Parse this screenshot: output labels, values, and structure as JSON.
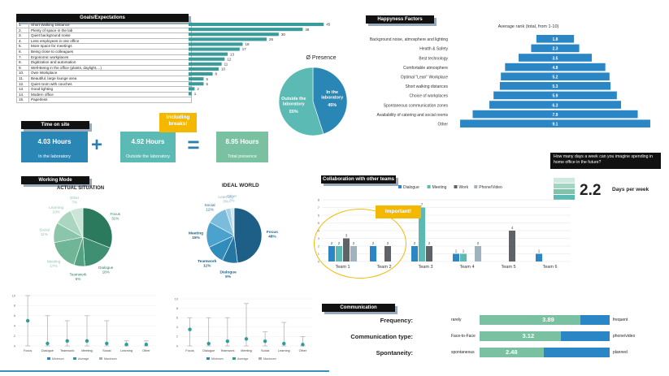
{
  "goals": {
    "title": "Goals/Expectations",
    "rows": [
      {
        "n": "1.",
        "label": "Short Walking Distance",
        "value": 45
      },
      {
        "n": "2.",
        "label": "Plenty of space in the lab",
        "value": 38
      },
      {
        "n": "3.",
        "label": "Quiet background noise",
        "value": 30
      },
      {
        "n": "4.",
        "label": "Less employees in one office",
        "value": 26
      },
      {
        "n": "5.",
        "label": "More space for meetings",
        "value": 18
      },
      {
        "n": "6.",
        "label": "Being close to colleagues",
        "value": 17
      },
      {
        "n": "7.",
        "label": "Ergonomic workplaces",
        "value": 13
      },
      {
        "n": "8.",
        "label": "Digitization and automation",
        "value": 12
      },
      {
        "n": "9.",
        "label": "Well-Being in the office (plants, daylight,...)",
        "value": 11
      },
      {
        "n": "10.",
        "label": "Own Workplace",
        "value": 10
      },
      {
        "n": "11.",
        "label": "Beautiful, large lounge area",
        "value": 8
      },
      {
        "n": "12.",
        "label": "Quiet room with couches",
        "value": 5
      },
      {
        "n": "13.",
        "label": "Good lighting",
        "value": 5
      },
      {
        "n": "14.",
        "label": "Modern office",
        "value": 2
      },
      {
        "n": "15.",
        "label": "Paperless",
        "value": 1
      }
    ]
  },
  "presence": {
    "title": "Ø Presence",
    "slices": [
      {
        "label": "In the laboratory",
        "value": "45%",
        "pct": 45,
        "color": "#2a86b4"
      },
      {
        "label": "Outside the laboratory",
        "value": "55%",
        "pct": 55,
        "color": "#5bbab3"
      }
    ]
  },
  "time": {
    "title": "Time on site",
    "lab": {
      "value": "4.03 Hours",
      "label": "In the laboratory"
    },
    "outside": {
      "value": "4.92 Hours",
      "label": "Outside the laboratory"
    },
    "total": {
      "value": "8.95 Hours",
      "label": "Total presence"
    },
    "callout": "Including breaks!",
    "plus": "+",
    "equals": "="
  },
  "happiness": {
    "title": "Happyness Factors",
    "subtitle": "Average rank (total, from 1-10)",
    "rows": [
      {
        "label": "Background noise, atmosphere and lighting",
        "value": 1.8
      },
      {
        "label": "Health & Safety",
        "value": 2.3
      },
      {
        "label": "Best technology",
        "value": 3.5
      },
      {
        "label": "Comfortable atmosphere",
        "value": 4.8
      },
      {
        "label": "Optimal \"Lean\" Workplace",
        "value": 5.2
      },
      {
        "label": "Short walking distances",
        "value": 5.3
      },
      {
        "label": "Choice of workplaces",
        "value": 5.9
      },
      {
        "label": "Spontaneous communication zones",
        "value": 6.3
      },
      {
        "label": "Availability of catering and social rooms",
        "value": 7.9
      },
      {
        "label": "Other",
        "value": 9.1
      }
    ]
  },
  "home_office": {
    "question": "How many days a week can you imagine spending in home office in the future?",
    "value": "2.2",
    "unit": "Days per week"
  },
  "working_mode": {
    "title": "Working Mode",
    "actual": {
      "title": "ACTUAL SITUATION",
      "slices": [
        {
          "label": "Focus",
          "value": "31%",
          "pct": 31,
          "color": "#2c7a5e"
        },
        {
          "label": "Dialogue",
          "value": "18%",
          "pct": 18,
          "color": "#3f8f72"
        },
        {
          "label": "Teamwork",
          "value": "6%",
          "pct": 6,
          "color": "#55a283"
        },
        {
          "label": "Meeting",
          "value": "17%",
          "pct": 17,
          "color": "#6fb596"
        },
        {
          "label": "Social",
          "value": "11%",
          "pct": 11,
          "color": "#8cc6aa"
        },
        {
          "label": "Learning",
          "value": "10%",
          "pct": 10,
          "color": "#aad6bf"
        },
        {
          "label": "Other",
          "value": "7%",
          "pct": 7,
          "color": "#cbe6d8"
        }
      ]
    },
    "ideal": {
      "title": "IDEAL WORLD",
      "slices": [
        {
          "label": "Focus",
          "value": "48%",
          "pct": 48,
          "color": "#1d5f86"
        },
        {
          "label": "Dialogue",
          "value": "9%",
          "pct": 9,
          "color": "#2576a2"
        },
        {
          "label": "Teamwork",
          "value": "11%",
          "pct": 11,
          "color": "#2f8cbb"
        },
        {
          "label": "Meeting",
          "value": "15%",
          "pct": 15,
          "color": "#4ba2cc"
        },
        {
          "label": "Social",
          "value": "12%",
          "pct": 12,
          "color": "#7bbbdc"
        },
        {
          "label": "Learning",
          "value": "3%",
          "pct": 3,
          "color": "#a6d1e8"
        },
        {
          "label": "Other",
          "value": "2%",
          "pct": 2,
          "color": "#cfe5f2"
        }
      ]
    }
  },
  "collaboration": {
    "title": "Collaboration with other teams",
    "legend": [
      "Dialogue",
      "Meeting",
      "Work",
      "Phone/Video"
    ],
    "colors": [
      "#2a86c4",
      "#5bbab3",
      "#5f6368",
      "#9fb2bd"
    ],
    "teams": [
      "Team 1",
      "Team 2",
      "Team 3",
      "Team 4",
      "Team 5",
      "Team 6"
    ],
    "values": [
      [
        2,
        2,
        3,
        2
      ],
      [
        2,
        null,
        2,
        null
      ],
      [
        2,
        7,
        2,
        null
      ],
      [
        1,
        1,
        null,
        2
      ],
      [
        null,
        null,
        4,
        null
      ],
      [
        1,
        null,
        null,
        null
      ]
    ],
    "ylim": [
      0,
      8
    ],
    "callout": "Important!"
  },
  "stats_actual": {
    "categories": [
      "Focus",
      "Dialogue",
      "Teamwork",
      "Meeting",
      "Social",
      "Learning",
      "Other"
    ],
    "mins": [
      0,
      0,
      0,
      0,
      0,
      0,
      0
    ],
    "maxs": [
      10,
      6,
      5,
      6,
      5,
      1,
      1
    ],
    "avgs": [
      5,
      0.5,
      1,
      1,
      0.5,
      0.3,
      0.3
    ],
    "legend": [
      "Minimum",
      "Average",
      "Maximum"
    ],
    "yticks": [
      "0",
      "2",
      "4",
      "6",
      "8",
      "10"
    ]
  },
  "stats_ideal": {
    "categories": [
      "Focus",
      "Dialogue",
      "Teamwork",
      "Meeting",
      "Social",
      "Learning",
      "Other"
    ],
    "mins": [
      0,
      0,
      0,
      0,
      0,
      0,
      0
    ],
    "maxs": [
      6,
      6,
      6,
      9,
      3,
      5,
      2
    ],
    "avgs": [
      3.5,
      0.5,
      1,
      1.5,
      1,
      0.5,
      0.3
    ],
    "legend": [
      "Minimum",
      "Average",
      "Maximum"
    ],
    "yticks": [
      "0",
      "2",
      "4",
      "6",
      "8",
      "10"
    ]
  },
  "communication": {
    "title": "Communication",
    "rows": [
      {
        "label": "Frequency:",
        "left": "rarely",
        "right": "frequent",
        "value": "3.89",
        "num": 3.89
      },
      {
        "label": "Communication type:",
        "left": "Face-to-Face",
        "right": "phone/video",
        "value": "3.12",
        "num": 3.12
      },
      {
        "label": "Spontaneity:",
        "left": "spontaneous",
        "right": "planned",
        "value": "2.48",
        "num": 2.48
      }
    ]
  },
  "chart_data": [
    {
      "type": "bar",
      "title": "Goals/Expectations",
      "categories": [
        "Short Walking Distance",
        "Plenty of space in the lab",
        "Quiet background noise",
        "Less employees in one office",
        "More space for meetings",
        "Being close to colleagues",
        "Ergonomic workplaces",
        "Digitization and automation",
        "Well-Being in the office (plants, daylight,...)",
        "Own Workplace",
        "Beautiful, large lounge area",
        "Quiet room with couches",
        "Good lighting",
        "Modern office",
        "Paperless"
      ],
      "values": [
        45,
        38,
        30,
        26,
        18,
        17,
        13,
        12,
        11,
        10,
        8,
        5,
        5,
        2,
        1
      ]
    },
    {
      "type": "pie",
      "title": "Ø Presence",
      "categories": [
        "In the laboratory",
        "Outside the laboratory"
      ],
      "values": [
        45,
        55
      ]
    },
    {
      "type": "bar",
      "title": "Happyness Factors",
      "subtitle": "Average rank (total, from 1-10)",
      "categories": [
        "Background noise, atmosphere and lighting",
        "Health & Safety",
        "Best technology",
        "Comfortable atmosphere",
        "Optimal \"Lean\" Workplace",
        "Short walking distances",
        "Choice of workplaces",
        "Spontaneous communication zones",
        "Availability of catering and social rooms",
        "Other"
      ],
      "values": [
        1.8,
        2.3,
        3.5,
        4.8,
        5.2,
        5.3,
        5.9,
        6.3,
        7.9,
        9.1
      ]
    },
    {
      "type": "pie",
      "title": "ACTUAL SITUATION",
      "categories": [
        "Focus",
        "Dialogue",
        "Teamwork",
        "Meeting",
        "Social",
        "Learning",
        "Other"
      ],
      "values": [
        31,
        18,
        6,
        17,
        11,
        10,
        7
      ]
    },
    {
      "type": "pie",
      "title": "IDEAL WORLD",
      "categories": [
        "Focus",
        "Dialogue",
        "Teamwork",
        "Meeting",
        "Social",
        "Learning",
        "Other"
      ],
      "values": [
        48,
        9,
        11,
        15,
        12,
        3,
        2
      ]
    },
    {
      "type": "bar",
      "title": "Collaboration with other teams",
      "categories": [
        "Team 1",
        "Team 2",
        "Team 3",
        "Team 4",
        "Team 5",
        "Team 6"
      ],
      "series": [
        {
          "name": "Dialogue",
          "values": [
            2,
            2,
            2,
            1,
            null,
            1
          ]
        },
        {
          "name": "Meeting",
          "values": [
            2,
            null,
            7,
            1,
            null,
            null
          ]
        },
        {
          "name": "Work",
          "values": [
            3,
            2,
            2,
            null,
            4,
            null
          ]
        },
        {
          "name": "Phone/Video",
          "values": [
            2,
            null,
            null,
            2,
            null,
            null
          ]
        }
      ],
      "ylim": [
        0,
        8
      ]
    },
    {
      "type": "bar",
      "title": "Communication",
      "categories": [
        "Frequency:",
        "Communication type:",
        "Spontaneity:"
      ],
      "values": [
        3.89,
        3.12,
        2.48
      ]
    }
  ]
}
